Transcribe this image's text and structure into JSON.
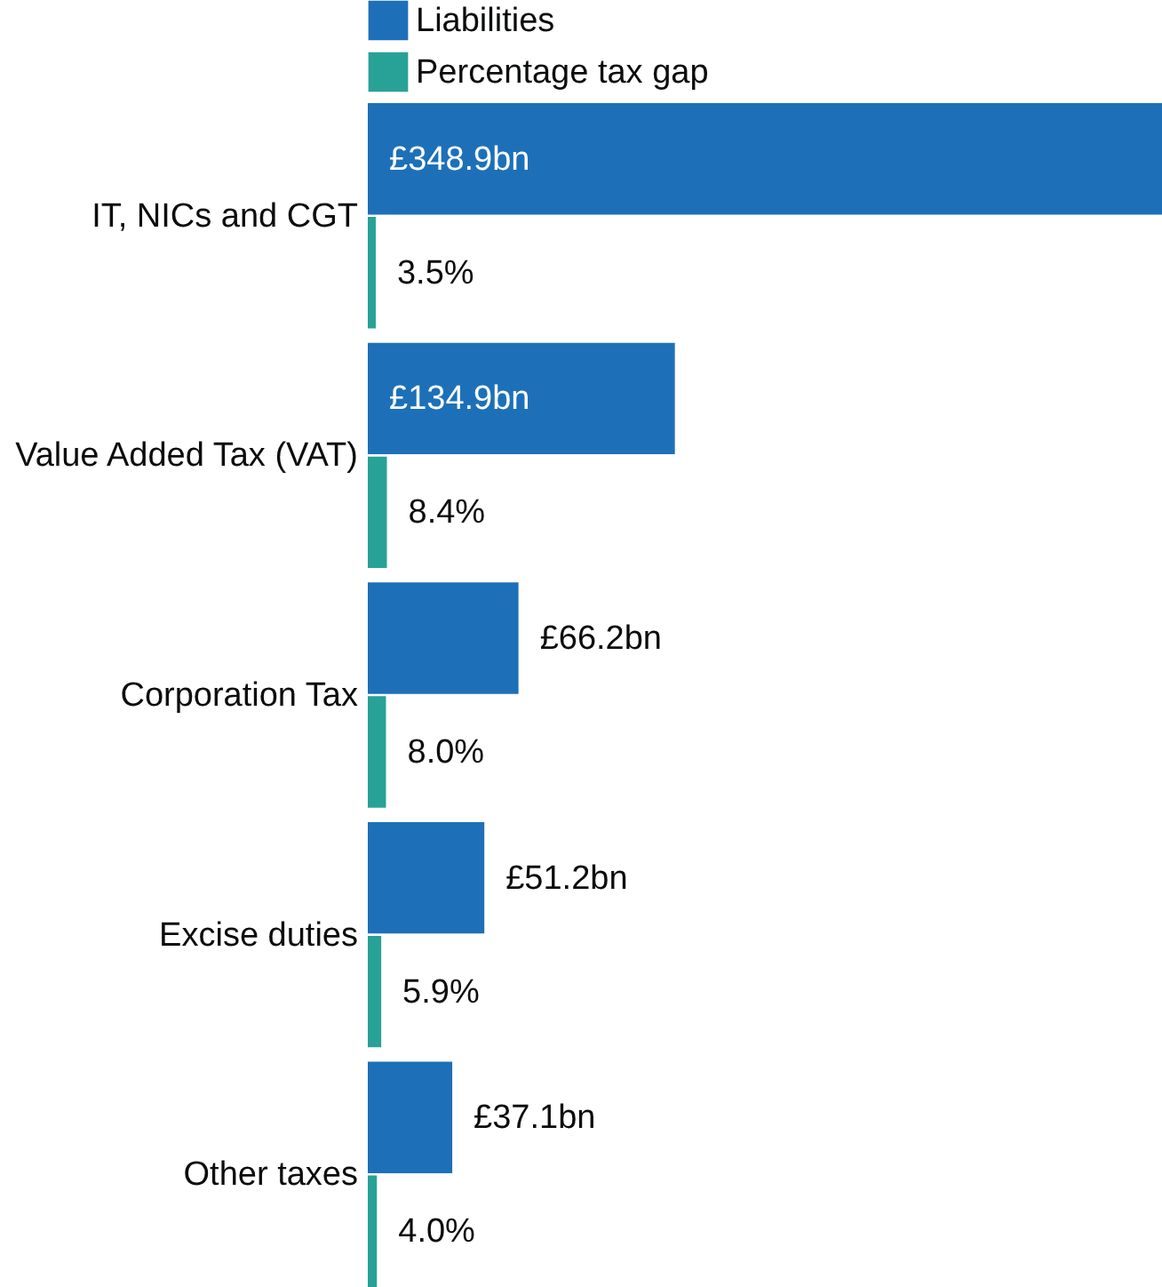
{
  "chart_data": {
    "type": "bar",
    "orientation": "horizontal",
    "data_labels": true,
    "legend": "top",
    "categories": [
      "IT, NICs and CGT",
      "Value Added Tax (VAT)",
      "Corporation Tax",
      "Excise duties",
      "Other taxes"
    ],
    "series": [
      {
        "name": "Liabilities",
        "color": "#1d70b8",
        "values": [
          348.9,
          134.9,
          66.2,
          51.2,
          37.1
        ],
        "value_labels": [
          "£348.9bn",
          "£134.9bn",
          "£66.2bn",
          "£51.2bn",
          "£37.1bn"
        ]
      },
      {
        "name": "Percentage tax gap",
        "color": "#28a197",
        "values": [
          3.5,
          8.4,
          8.0,
          5.9,
          4.0
        ],
        "value_labels": [
          "3.5%",
          "8.4%",
          "8.0%",
          "5.9%",
          "4.0%"
        ]
      }
    ]
  }
}
